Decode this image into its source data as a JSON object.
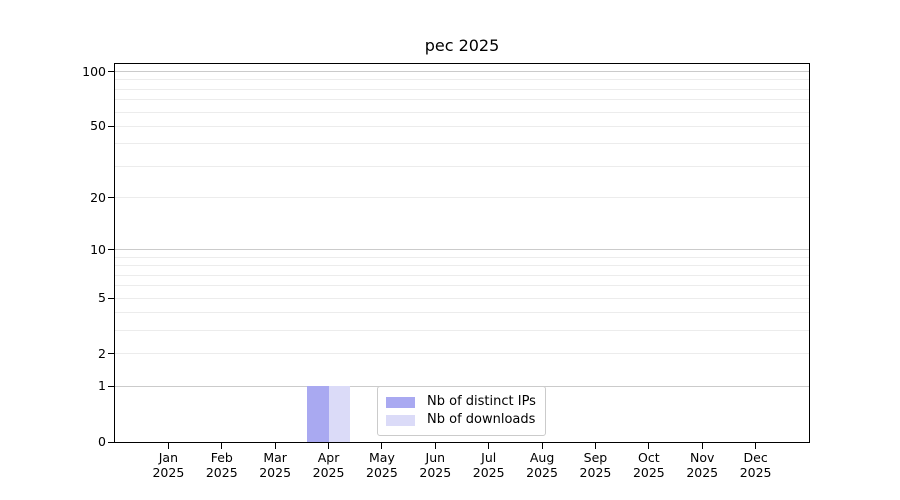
{
  "chart_data": {
    "type": "bar",
    "title": "pec 2025",
    "scale": "log1p",
    "ylim": [
      0,
      110
    ],
    "grid": true,
    "legend_position": "lower center",
    "year": "2025",
    "months": [
      "Jan",
      "Feb",
      "Mar",
      "Apr",
      "May",
      "Jun",
      "Jul",
      "Aug",
      "Sep",
      "Oct",
      "Nov",
      "Dec"
    ],
    "y_ticks": [
      0,
      1,
      2,
      5,
      10,
      20,
      50,
      100
    ],
    "y_major_gridlines": [
      1,
      10,
      100
    ],
    "y_minor_gridlines": [
      2,
      3,
      4,
      5,
      6,
      7,
      8,
      9,
      20,
      30,
      40,
      50,
      60,
      70,
      80,
      90
    ],
    "series": [
      {
        "name": "Nb of distinct IPs",
        "color": "#a9a9f1",
        "values": [
          0,
          0,
          0,
          1,
          0,
          0,
          0,
          0,
          0,
          0,
          0,
          0
        ]
      },
      {
        "name": "Nb of downloads",
        "color": "#dbdbf8",
        "values": [
          0,
          0,
          0,
          1,
          0,
          0,
          0,
          0,
          0,
          0,
          0,
          0
        ]
      }
    ],
    "colors": {
      "major_grid": "#cbcbcb",
      "minor_grid": "#ececec",
      "axis": "#000000",
      "background": "#ffffff",
      "legend_border": "#cbcbcb"
    }
  }
}
